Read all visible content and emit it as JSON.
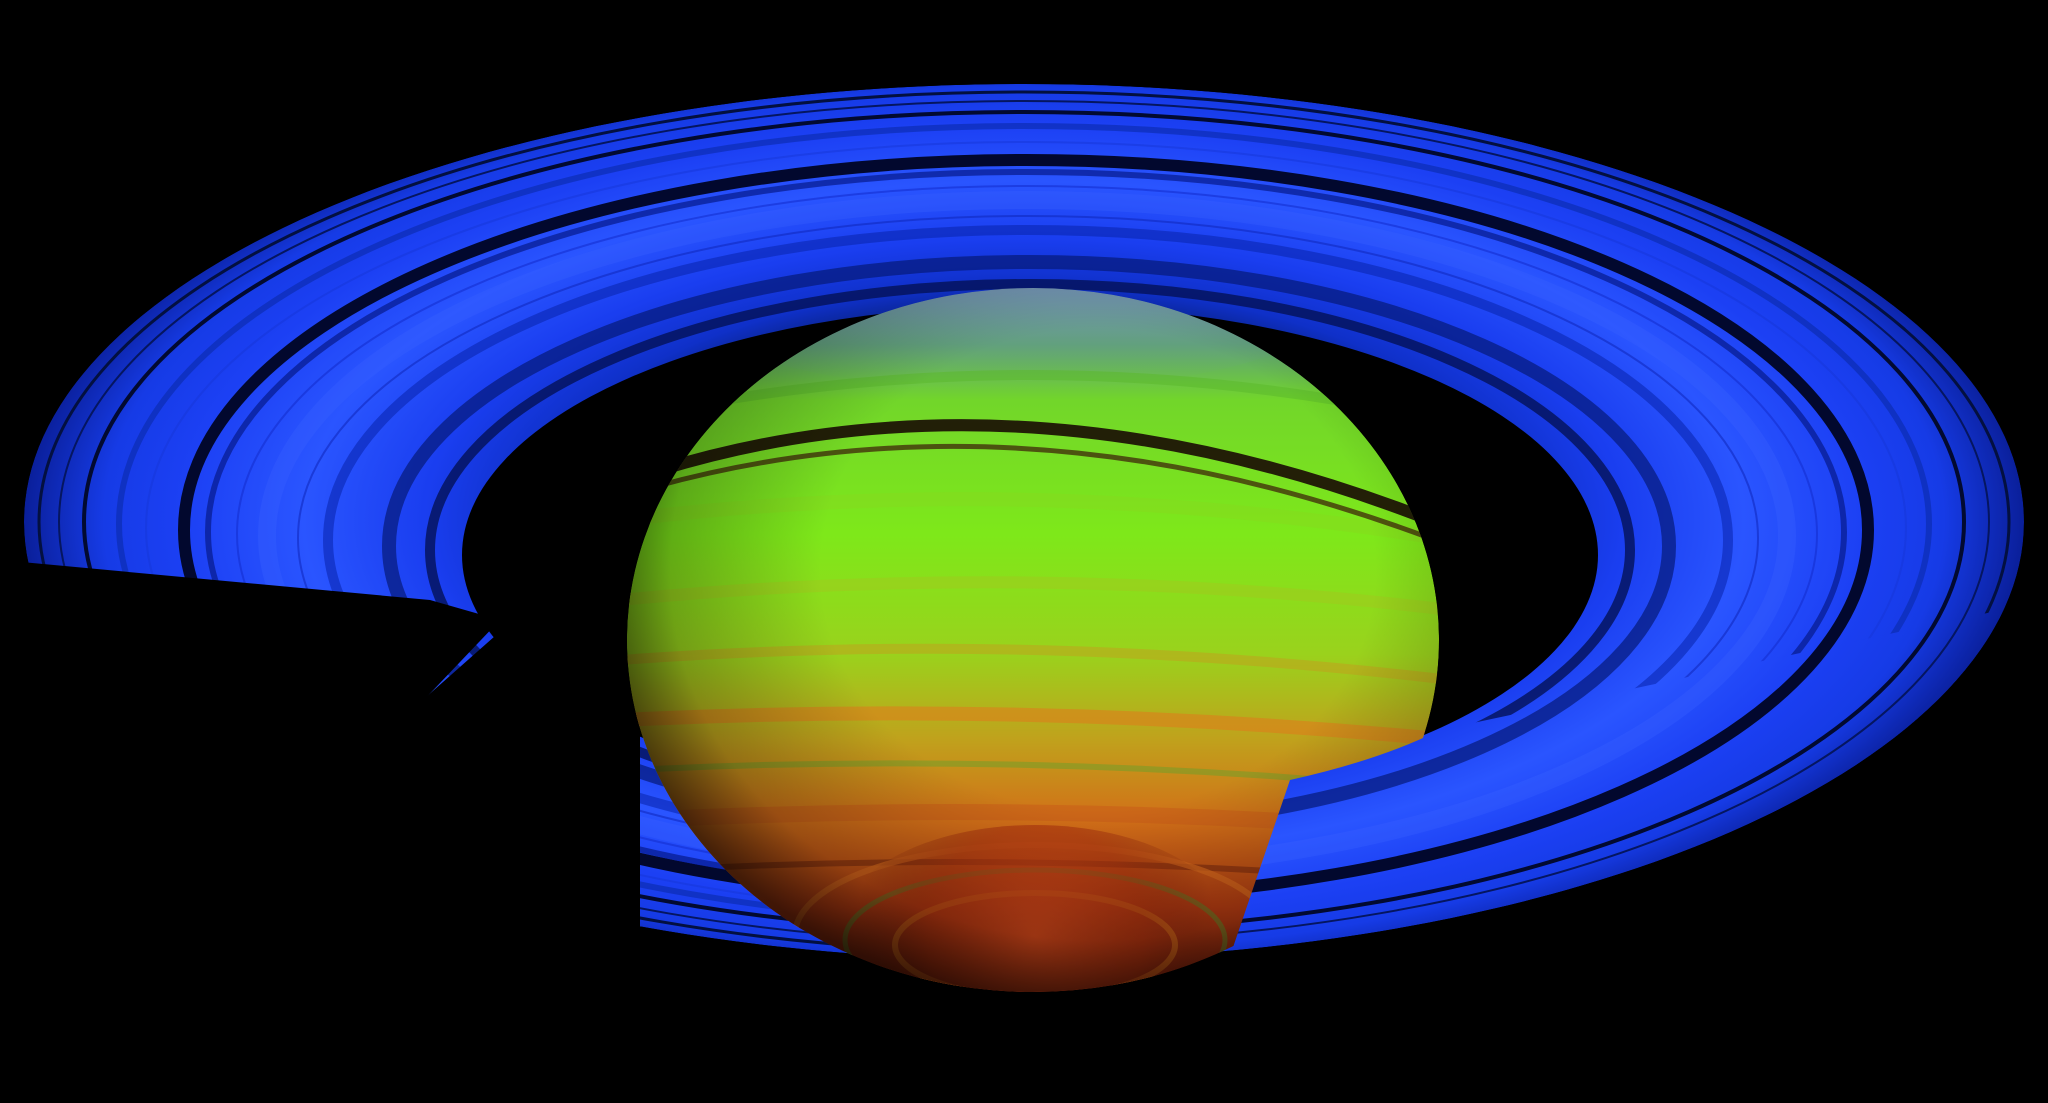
{
  "scene": {
    "subject": "saturn-false-color",
    "colors": {
      "background": "#000000",
      "ring_blue": "#1236e8",
      "ring_bright": "#2a55ff",
      "ring_dark": "#061a8a",
      "gap_dark": "#02082e",
      "planet_green": "#7ee81a",
      "planet_yellow": "#b6c020",
      "planet_orange": "#d86a18",
      "planet_red": "#b83a12",
      "planet_dark_red": "#5a140a",
      "north_cap": "#6f8fb0",
      "equator_band": "#1a0a04"
    }
  }
}
